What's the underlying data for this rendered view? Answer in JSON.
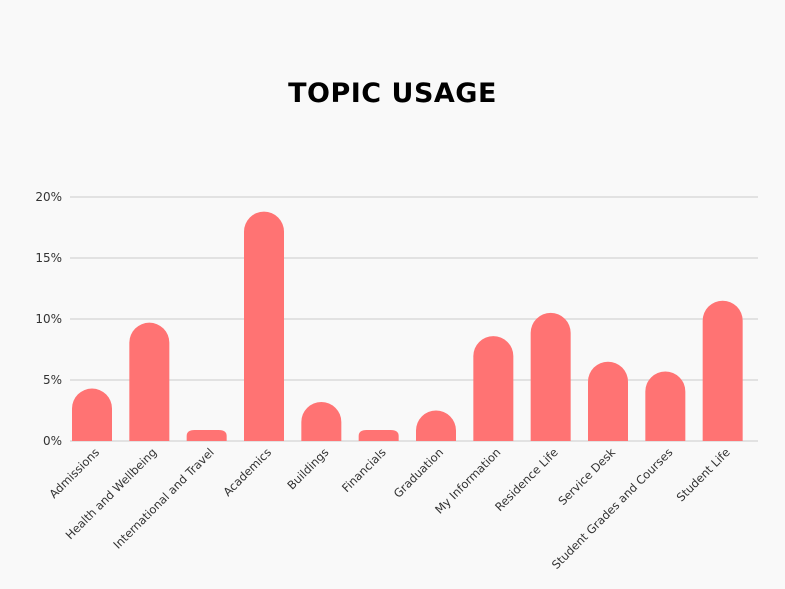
{
  "chart_data": {
    "type": "bar",
    "title": "TOPIC USAGE",
    "categories": [
      "Admissions",
      "Health and Wellbeing",
      "International and Travel",
      "Academics",
      "Buildings",
      "Financials",
      "Graduation",
      "My Information",
      "Residence Life",
      "Service Desk",
      "Student Grades and Courses",
      "Student Life"
    ],
    "values": [
      4.3,
      9.7,
      0.9,
      18.8,
      3.2,
      0.9,
      2.5,
      8.6,
      10.5,
      6.5,
      5.7,
      11.5
    ],
    "ylim": [
      0,
      20
    ],
    "yticks": [
      "0%",
      "5%",
      "10%",
      "15%",
      "20%"
    ],
    "ytick_values": [
      0,
      5,
      10,
      15,
      20
    ],
    "xlabel": "",
    "ylabel": "",
    "grid": true,
    "bar_color": "#ff7373",
    "grid_color": "#cccccc",
    "background": "#f9f9f9"
  }
}
